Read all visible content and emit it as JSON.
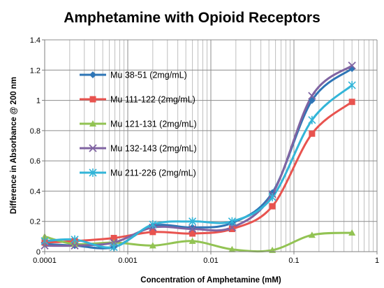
{
  "chart_data": {
    "type": "scatter",
    "title": "Amphetamine with Opioid Receptors",
    "xlabel": "Concentration of Amphetamine (mM)",
    "ylabel": "Difference in Absorbance @ 200 nm",
    "x_scale": "log",
    "xlim": [
      0.0001,
      1
    ],
    "ylim": [
      0,
      1.4
    ],
    "x_ticks": [
      0.0001,
      0.001,
      0.01,
      0.1,
      1
    ],
    "x_tick_labels": [
      "0.0001",
      "0.001",
      "0.01",
      "0.1",
      "1"
    ],
    "y_ticks": [
      0,
      0.2,
      0.4,
      0.6,
      0.8,
      1,
      1.2,
      1.4
    ],
    "y_tick_labels": [
      "0",
      "0.2",
      "0.4",
      "0.6",
      "0.8",
      "1",
      "1.2",
      "1.4"
    ],
    "grid": true,
    "legend_position": "top-left",
    "x": [
      0.0001,
      0.00023,
      0.00068,
      0.002,
      0.006,
      0.018,
      0.055,
      0.165,
      0.5
    ],
    "series": [
      {
        "name": "Mu 38-51 (2mg/mL)",
        "color": "#2e75b6",
        "marker": "diamond",
        "values": [
          0.05,
          0.04,
          0.03,
          0.17,
          0.16,
          0.19,
          0.39,
          1.0,
          1.21
        ]
      },
      {
        "name": "Mu 111-122 (2mg/mL)",
        "color": "#e8534f",
        "marker": "square",
        "values": [
          0.06,
          0.07,
          0.09,
          0.13,
          0.12,
          0.15,
          0.3,
          0.78,
          0.99
        ]
      },
      {
        "name": "Mu 121-131 (2mg/mL)",
        "color": "#92c353",
        "marker": "triangle",
        "values": [
          0.1,
          0.05,
          0.06,
          0.04,
          0.07,
          0.015,
          0.01,
          0.11,
          0.125
        ]
      },
      {
        "name": "Mu 132-143 (2mg/mL)",
        "color": "#8064a2",
        "marker": "x",
        "values": [
          0.04,
          0.04,
          0.06,
          0.16,
          0.15,
          0.16,
          0.38,
          1.03,
          1.23
        ]
      },
      {
        "name": "Mu 211-226 (2mg/mL)",
        "color": "#33b5d8",
        "marker": "asterisk",
        "values": [
          0.07,
          0.08,
          0.03,
          0.18,
          0.2,
          0.2,
          0.36,
          0.87,
          1.1
        ]
      }
    ]
  }
}
